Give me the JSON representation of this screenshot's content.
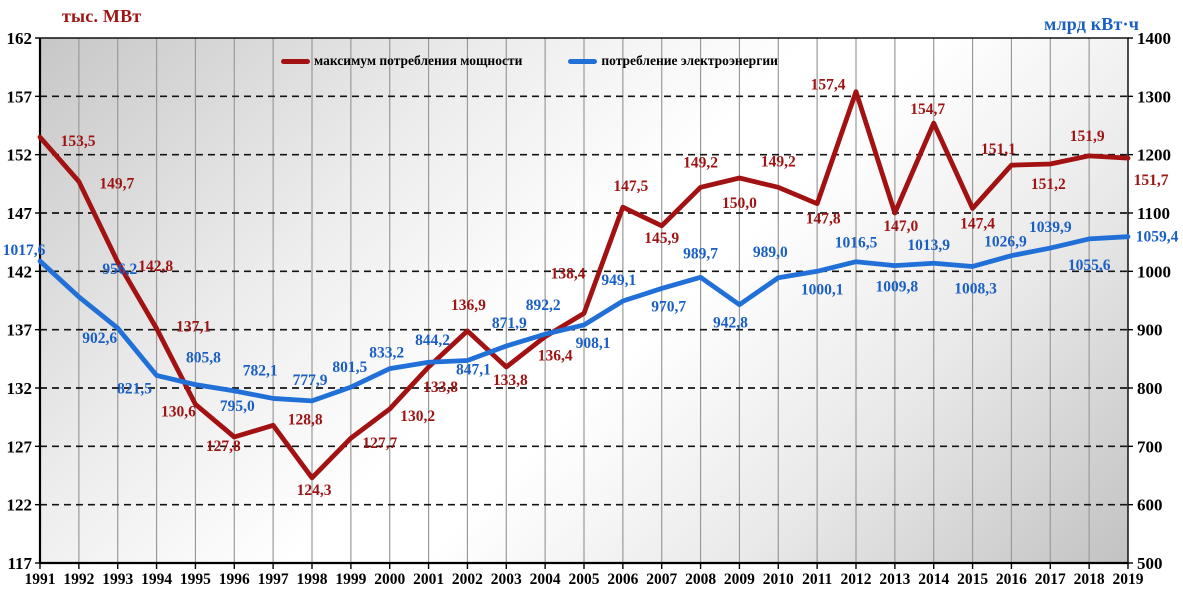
{
  "chart_data": {
    "type": "line",
    "title": "",
    "grid": {
      "horizontal": "dashed-black",
      "vertical": "solid-gray"
    },
    "legend_position": "top-inside",
    "x": [
      "1991",
      "1992",
      "1993",
      "1994",
      "1995",
      "1996",
      "1997",
      "1998",
      "1999",
      "2000",
      "2001",
      "2002",
      "2003",
      "2004",
      "2005",
      "2006",
      "2007",
      "2008",
      "2009",
      "2010",
      "2011",
      "2012",
      "2013",
      "2014",
      "2015",
      "2016",
      "2017",
      "2018",
      "2019"
    ],
    "left_axis": {
      "title": "тыс. МВт",
      "min": 117,
      "max": 162,
      "step": 5,
      "ticks": [
        162,
        157,
        152,
        147,
        142,
        137,
        132,
        127,
        122,
        117
      ],
      "color": "#9e1313"
    },
    "right_axis": {
      "title": "млрд кВт·ч",
      "min": 500,
      "max": 1400,
      "step": 100,
      "ticks": [
        1400,
        1300,
        1200,
        1100,
        1000,
        900,
        800,
        700,
        600,
        500
      ],
      "color": "#1a5fc4"
    },
    "series": [
      {
        "name": "максимум потребления мощности",
        "axis": "left",
        "line_color": "#a31212",
        "label_color": "#9e1313",
        "values": [
          153.5,
          149.7,
          142.8,
          137.1,
          130.6,
          127.8,
          128.8,
          124.3,
          127.7,
          130.2,
          133.8,
          136.9,
          133.8,
          136.4,
          138.4,
          147.5,
          145.9,
          149.2,
          150.0,
          149.2,
          147.8,
          157.4,
          147.0,
          154.7,
          147.4,
          151.1,
          151.2,
          151.9,
          151.7
        ],
        "labels": [
          "153,5",
          "149,7",
          "142,8",
          "137,1",
          "130,6",
          "127,8",
          "128,8",
          "124,3",
          "127,7",
          "130,2",
          "133,8",
          "136,9",
          "133,8",
          "136,4",
          "138,4",
          "147,5",
          "145,9",
          "149,2",
          "150,0",
          "149,2",
          "147,8",
          "157,4",
          "147,0",
          "154,7",
          "147,4",
          "151,1",
          "151,2",
          "151,9",
          "151,7"
        ]
      },
      {
        "name": "потребление электроэнергии",
        "axis": "right",
        "line_color": "#2170d8",
        "label_color": "#1a5fc4",
        "values": [
          1017.6,
          956.2,
          902.6,
          821.5,
          805.8,
          795.0,
          782.1,
          777.9,
          801.5,
          833.2,
          844.2,
          847.1,
          871.9,
          892.2,
          908.1,
          949.1,
          970.7,
          989.7,
          942.8,
          989.0,
          1000.1,
          1016.5,
          1009.8,
          1013.9,
          1008.3,
          1026.9,
          1039.9,
          1055.6,
          1059.4
        ],
        "labels": [
          "1017,6",
          "956,2",
          "902,6",
          "821,5",
          "805,8",
          "795,0",
          "782,1",
          "777,9",
          "801,5",
          "833,2",
          "844,2",
          "847,1",
          "871,9",
          "892,2",
          "908,1",
          "949,1",
          "970,7",
          "989,7",
          "942,8",
          "989,0",
          "1000,1",
          "1016,5",
          "1009,8",
          "1013,9",
          "1008,3",
          "1026,9",
          "1039,9",
          "1055,6",
          "1059,4"
        ]
      }
    ]
  }
}
